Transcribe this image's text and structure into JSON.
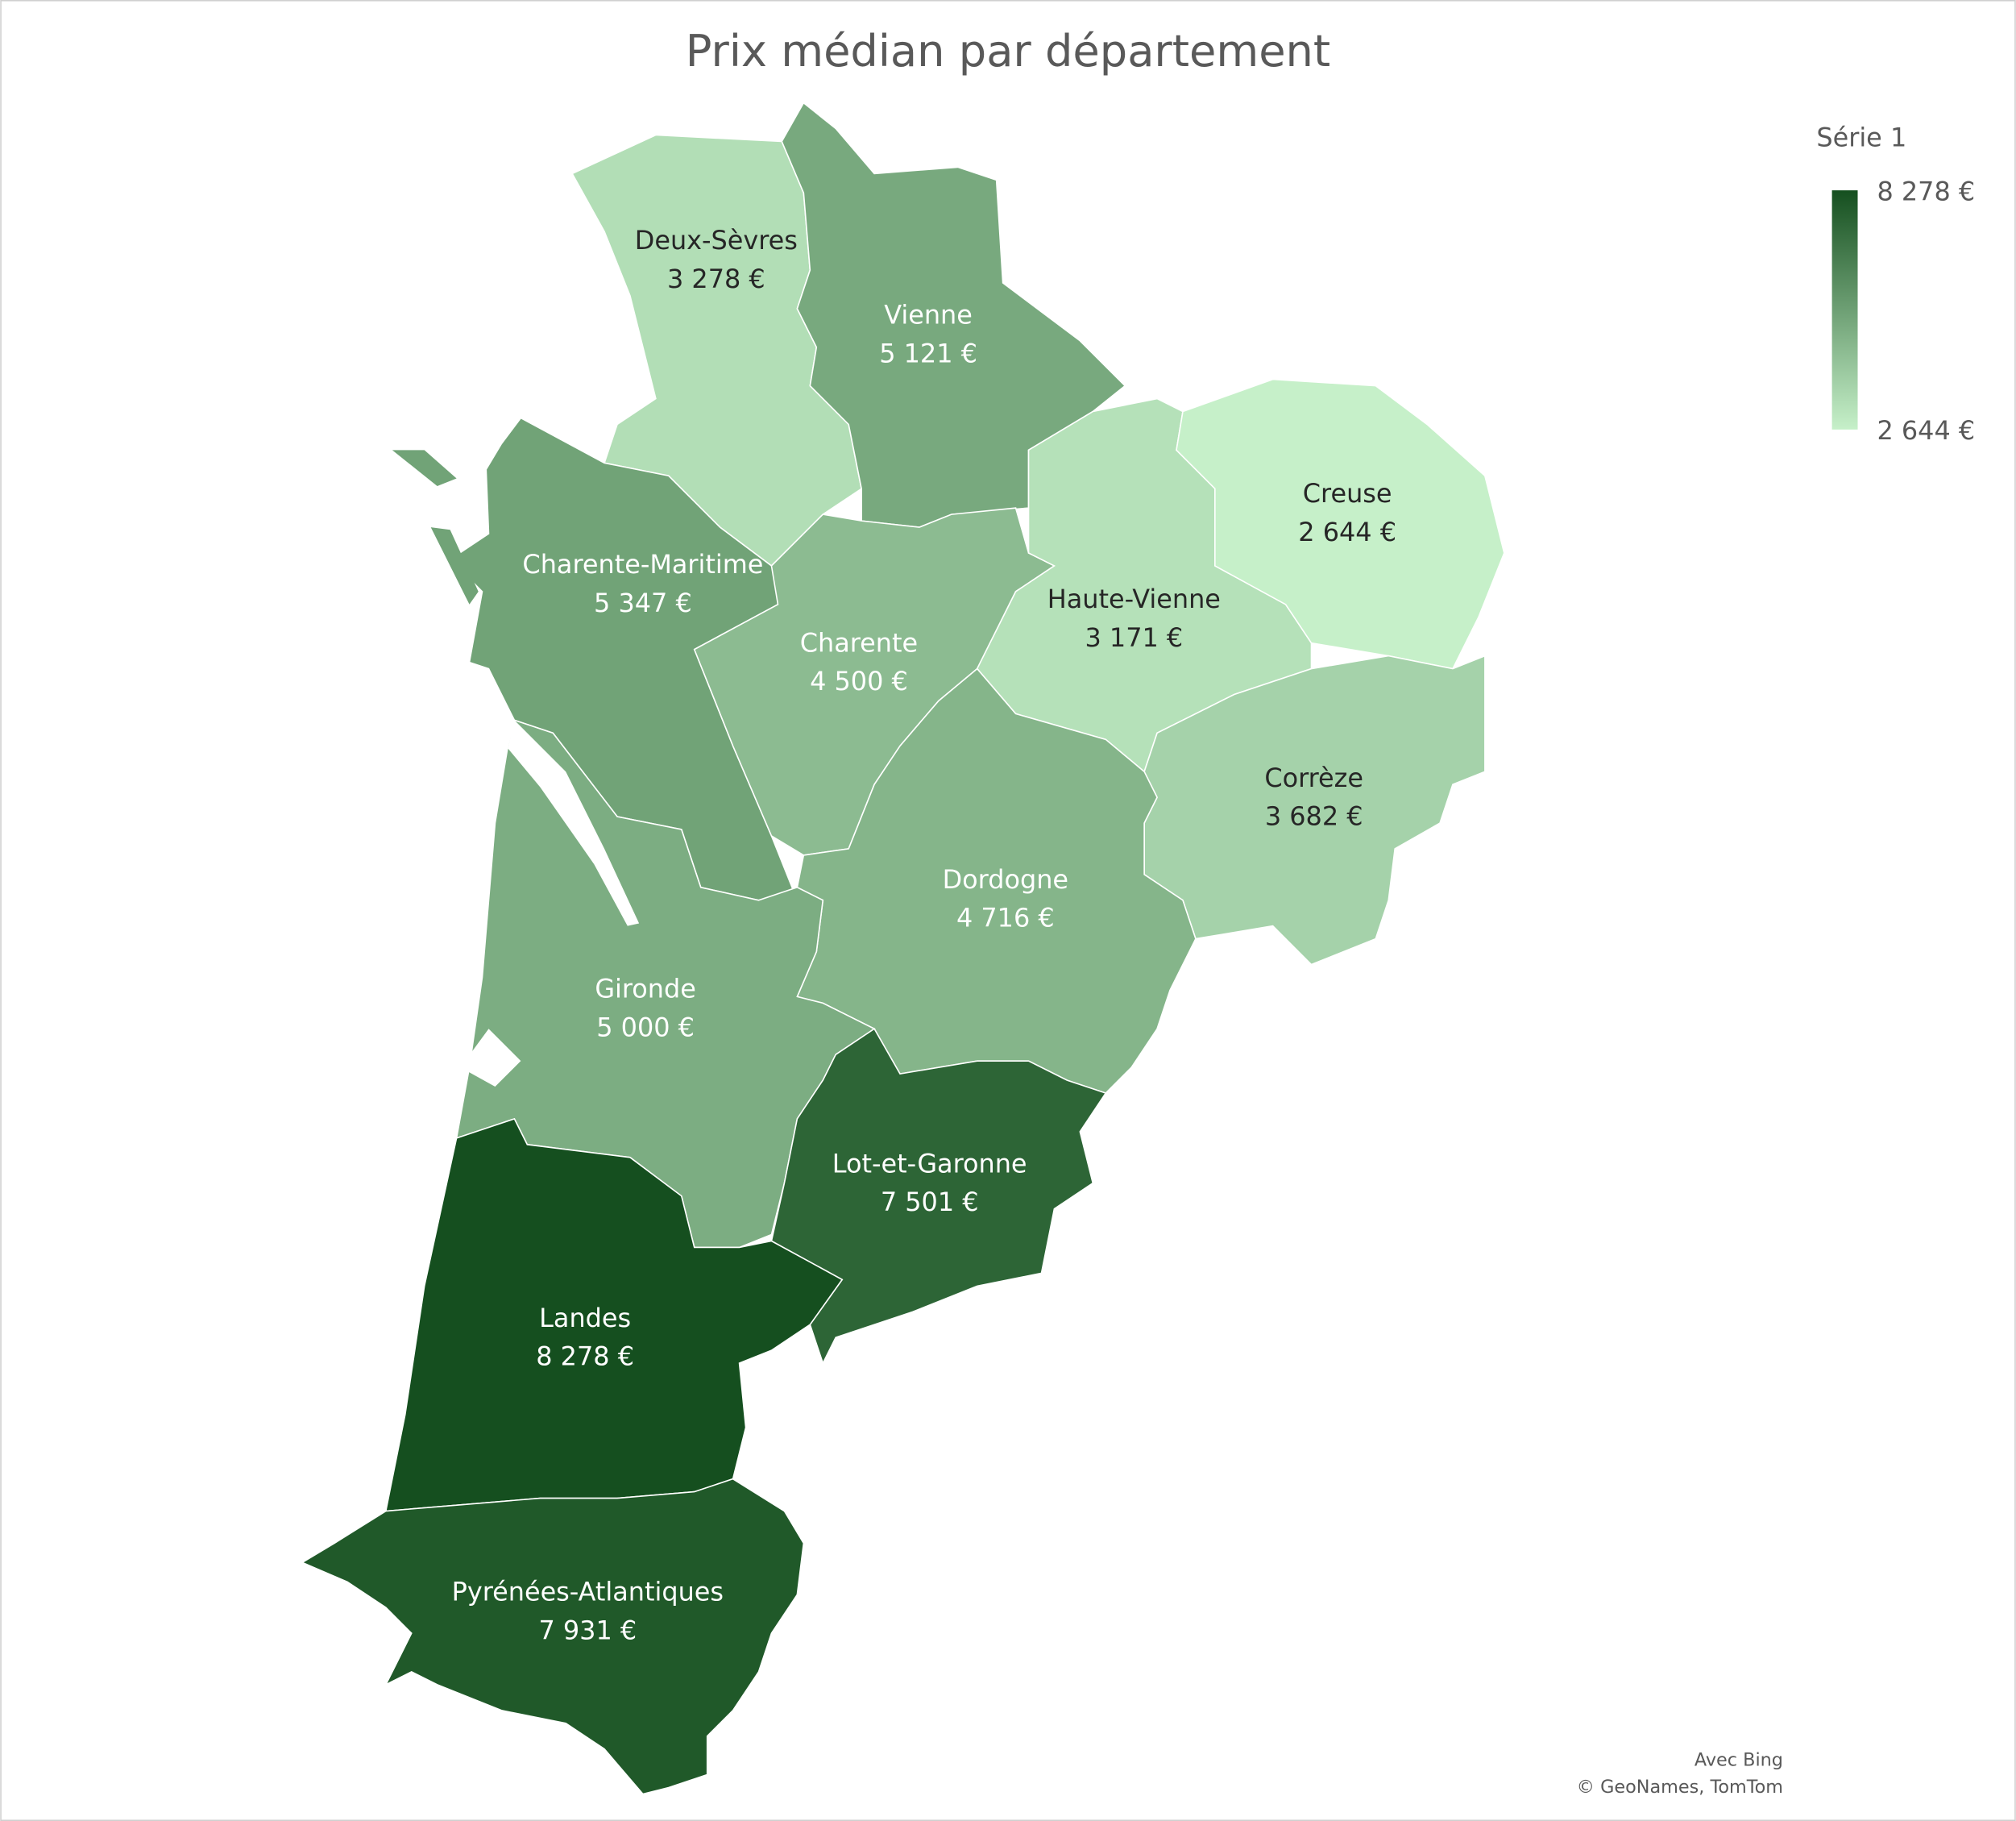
{
  "chart_data": {
    "type": "choropleth",
    "title": "Prix médian par département",
    "categories": [
      "Deux-Sèvres",
      "Vienne",
      "Charente-Maritime",
      "Charente",
      "Haute-Vienne",
      "Creuse",
      "Corrèze",
      "Dordogne",
      "Gironde",
      "Lot-et-Garonne",
      "Landes",
      "Pyrénées-Atlantiques"
    ],
    "values": [
      3278,
      5121,
      5347,
      4500,
      3171,
      2644,
      3682,
      4716,
      5000,
      7501,
      8278,
      7931
    ],
    "value_labels": [
      "3 278 €",
      "5 121 €",
      "5 347 €",
      "4 500 €",
      "3 171 €",
      "2 644 €",
      "3 682 €",
      "4 716 €",
      "5 000 €",
      "7 501 €",
      "8 278 €",
      "7 931 €"
    ],
    "legend": {
      "title": "Série 1",
      "range": [
        {
          "value": 2644,
          "label": "2 644 €"
        },
        {
          "value": 8278,
          "label": "8 278 €"
        }
      ],
      "colors": [
        "#c6f0c9",
        "#154f1f"
      ]
    },
    "attribution": [
      "Avec Bing",
      "© GeoNames, TomTom"
    ]
  }
}
